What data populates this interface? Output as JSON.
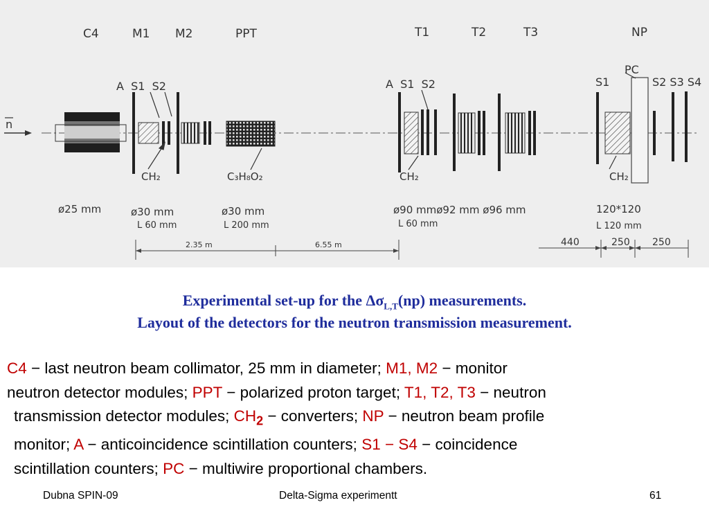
{
  "diagram": {
    "module_labels": [
      "C4",
      "M1",
      "M2",
      "PPT",
      "T1",
      "T2",
      "T3",
      "NP"
    ],
    "counter_labels_left": "A  S1  S2",
    "counter_labels_mid": "A  S1  S2",
    "counter_s1_right": "S1",
    "counter_pc": "PC",
    "counter_s234": "S2 S3 S4",
    "beam_symbol": "n",
    "converter_label": "CH₂",
    "target_label": "C₃H₈O₂",
    "dims": {
      "c4_diam": "ø25  mm",
      "m_diam": "ø30  mm",
      "m_len": "L  60 mm",
      "ppt_diam": "ø30  mm",
      "ppt_len": "L  200 mm",
      "t_diam": "ø90  mmø92  mm  ø96  mm",
      "t_len": "L  60 mm",
      "np_size": "120*120",
      "np_len": "L  120 mm"
    },
    "distances": [
      "2.35 m",
      "6.55 m",
      "440",
      "250",
      "250"
    ]
  },
  "caption": {
    "line1_pre": "Experimental set-up for the ",
    "symbol": "Δσ",
    "subscript": "L,T",
    "line1_post": "(np) measurements.",
    "line2": "Layout of the detectors for the neutron transmission measurement."
  },
  "legend": {
    "c4_key": "C4",
    "c4_text": " − last neutron beam collimator, 25 mm in diameter;  ",
    "m_key": "M1, M2",
    "m_text": " − monitor",
    "m_text2": "neutron detector modules;  ",
    "ppt_key": "PPT",
    "ppt_text": " − polarized proton target;  ",
    "t_key": "T1, T2, T3",
    "t_text": " − neutron",
    "t_text2": "transmission detector modules;  ",
    "ch_key": "CH",
    "ch_sub": "2",
    "ch_text": " − converters;  ",
    "np_key": "NP",
    "np_text": " − neutron beam profile",
    "np_text2": "monitor;  ",
    "a_key": "A",
    "a_text": " − anticoincidence scintillation counters;  ",
    "s_key": "S1 − S4",
    "s_text": " − coincidence",
    "s_text2": "scintillation counters;  ",
    "pc_key": "PC",
    "pc_text": " − multiwire proportional chambers."
  },
  "footer": {
    "left": "Dubna SPIN-09",
    "center": "Delta-Sigma experimentt",
    "page": "61"
  },
  "colors": {
    "caption": "#1f2d9c",
    "key": "#c00000"
  }
}
